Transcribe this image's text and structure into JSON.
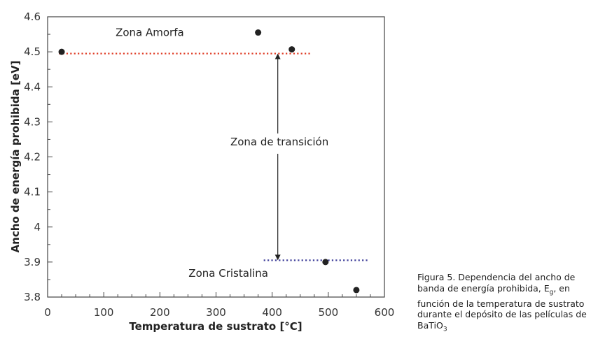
{
  "chart_data": {
    "type": "scatter",
    "xlabel": "Temperatura de sustrato [°C]",
    "ylabel": "Ancho de energía prohibida [eV]",
    "xlim": [
      0,
      600
    ],
    "ylim": [
      3.8,
      4.6
    ],
    "x_ticks": [
      0,
      100,
      200,
      300,
      400,
      500,
      600
    ],
    "y_ticks": [
      "3.8",
      "3.9",
      "4",
      "4.1",
      "4.2",
      "4.3",
      "4.4",
      "4.5",
      "4.6"
    ],
    "grid": false,
    "series": [
      {
        "color": "#222222",
        "points": [
          {
            "x": 25,
            "y": 4.5
          },
          {
            "x": 375,
            "y": 4.555
          },
          {
            "x": 435,
            "y": 4.507
          },
          {
            "x": 495,
            "y": 3.9
          },
          {
            "x": 550,
            "y": 3.82
          }
        ]
      }
    ],
    "reference_lines": [
      {
        "y": 4.495,
        "x_from": 20,
        "x_to": 470,
        "color": "#e0402a",
        "style": "dotted"
      },
      {
        "y": 3.905,
        "x_from": 385,
        "x_to": 570,
        "color": "#3f3f9a",
        "style": "dotted"
      }
    ],
    "arrow": {
      "x": 410,
      "y_from": 4.495,
      "y_to": 3.905,
      "color": "#222222"
    },
    "annotations": [
      {
        "text": "Zona Amorfa",
        "x": 182,
        "y": 4.545
      },
      {
        "text": "Zona de transición",
        "x": 413,
        "y": 4.233
      },
      {
        "text": "Zona Cristalina",
        "x": 322,
        "y": 3.858
      }
    ]
  },
  "caption": {
    "line1": "Figura 5. Dependencia del ancho de",
    "line2_pre": "banda de energía prohibida, E",
    "line2_sub": "g",
    "line2_post": ", en",
    "line3": "función de la temperatura de sustrato",
    "line4": "durante el depósito de las películas de",
    "line5_pre": "BaTiO",
    "line5_sub": "3"
  }
}
